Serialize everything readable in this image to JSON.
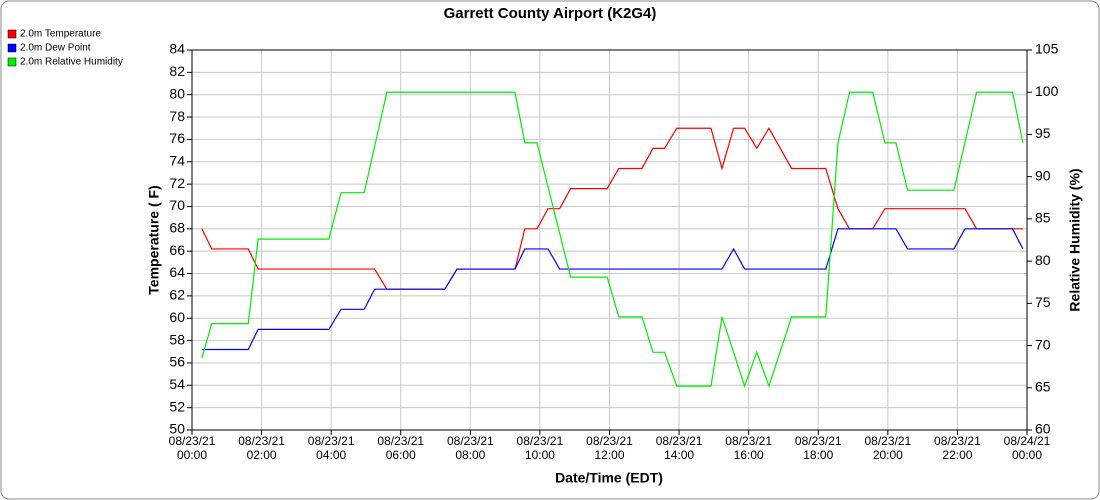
{
  "chart_data": {
    "type": "line",
    "title": "Garrett County Airport (K2G4)",
    "xlabel": "Date/Time (EDT)",
    "ylabel": "Temperature ( F)",
    "y2label": "Relative Humidity (%)",
    "xlim": [
      "08/23/21 00:00",
      "08/24/21 00:00"
    ],
    "xticks": [
      "08/23/21 00:00",
      "08/23/21 02:00",
      "08/23/21 04:00",
      "08/23/21 06:00",
      "08/23/21 08:00",
      "08/23/21 10:00",
      "08/23/21 12:00",
      "08/23/21 14:00",
      "08/23/21 16:00",
      "08/23/21 18:00",
      "08/23/21 20:00",
      "08/23/21 22:00",
      "08/24/21 00:00"
    ],
    "ylim": [
      50,
      84
    ],
    "yticks": [
      50,
      52,
      54,
      56,
      58,
      60,
      62,
      64,
      66,
      68,
      70,
      72,
      74,
      76,
      78,
      80,
      82,
      84
    ],
    "y2lim": [
      60,
      105
    ],
    "y2ticks": [
      60,
      65,
      70,
      75,
      80,
      85,
      90,
      95,
      100,
      105
    ],
    "grid": true,
    "legend": "top-left",
    "series": [
      {
        "name": "2.0m Temperature",
        "color": "#ff0000",
        "x": [
          "08/23/21 00:17",
          "08/23/21 00:34",
          "08/23/21 01:37",
          "08/23/21 01:54",
          "08/23/21 05:15",
          "08/23/21 05:36",
          "08/23/21 07:16",
          "08/23/21 07:37",
          "08/23/21 09:17",
          "08/23/21 09:34",
          "08/23/21 09:55",
          "08/23/21 10:14",
          "08/23/21 10:34",
          "08/23/21 10:53",
          "08/23/21 11:56",
          "08/23/21 12:16",
          "08/23/21 12:56",
          "08/23/21 13:15",
          "08/23/21 13:35",
          "08/23/21 13:56",
          "08/23/21 14:55",
          "08/23/21 15:14",
          "08/23/21 15:34",
          "08/23/21 15:53",
          "08/23/21 16:14",
          "08/23/21 16:35",
          "08/23/21 17:14",
          "08/23/21 18:13",
          "08/23/21 18:34",
          "08/23/21 18:54",
          "08/23/21 19:34",
          "08/23/21 19:55",
          "08/23/21 22:13",
          "08/23/21 22:33",
          "08/23/21 23:53"
        ],
        "values": [
          68.0,
          66.2,
          66.2,
          64.4,
          64.4,
          62.6,
          62.6,
          64.4,
          64.4,
          68.0,
          68.0,
          69.8,
          69.8,
          71.6,
          71.6,
          73.4,
          73.4,
          75.2,
          75.2,
          77.0,
          77.0,
          73.4,
          77.0,
          77.0,
          75.2,
          77.0,
          73.4,
          73.4,
          69.8,
          68.0,
          68.0,
          69.8,
          69.8,
          68.0,
          68.0
        ]
      },
      {
        "name": "2.0m Dew Point",
        "color": "#0000ff",
        "x": [
          "08/23/21 00:17",
          "08/23/21 01:37",
          "08/23/21 01:54",
          "08/23/21 03:56",
          "08/23/21 04:17",
          "08/23/21 04:57",
          "08/23/21 05:15",
          "08/23/21 07:16",
          "08/23/21 07:37",
          "08/23/21 09:17",
          "08/23/21 09:34",
          "08/23/21 10:14",
          "08/23/21 10:34",
          "08/23/21 15:14",
          "08/23/21 15:34",
          "08/23/21 15:53",
          "08/23/21 18:13",
          "08/23/21 18:34",
          "08/23/21 20:14",
          "08/23/21 20:34",
          "08/23/21 21:54",
          "08/23/21 22:13",
          "08/23/21 23:35",
          "08/23/21 23:53"
        ],
        "values": [
          57.2,
          57.2,
          59.0,
          59.0,
          60.8,
          60.8,
          62.6,
          62.6,
          64.4,
          64.4,
          66.2,
          66.2,
          64.4,
          64.4,
          66.2,
          64.4,
          64.4,
          68.0,
          68.0,
          66.2,
          66.2,
          68.0,
          68.0,
          66.2
        ]
      },
      {
        "name": "2.0m Relative Humidity",
        "color": "#00ee00",
        "axis": "y2",
        "x": [
          "08/23/21 00:17",
          "08/23/21 00:34",
          "08/23/21 01:37",
          "08/23/21 01:54",
          "08/23/21 03:56",
          "08/23/21 04:17",
          "08/23/21 04:57",
          "08/23/21 05:36",
          "08/23/21 09:17",
          "08/23/21 09:34",
          "08/23/21 09:55",
          "08/23/21 10:53",
          "08/23/21 11:56",
          "08/23/21 12:16",
          "08/23/21 12:56",
          "08/23/21 13:15",
          "08/23/21 13:35",
          "08/23/21 13:56",
          "08/23/21 14:55",
          "08/23/21 15:14",
          "08/23/21 15:53",
          "08/23/21 16:14",
          "08/23/21 16:35",
          "08/23/21 17:14",
          "08/23/21 18:13",
          "08/23/21 18:34",
          "08/23/21 18:54",
          "08/23/21 19:34",
          "08/23/21 19:55",
          "08/23/21 20:14",
          "08/23/21 20:34",
          "08/23/21 21:54",
          "08/23/21 22:33",
          "08/23/21 23:35",
          "08/23/21 23:53"
        ],
        "values": [
          68.5,
          72.6,
          72.6,
          82.6,
          82.6,
          88.1,
          88.1,
          100,
          100,
          94,
          94,
          78.1,
          78.1,
          73.4,
          73.4,
          69.2,
          69.2,
          65.2,
          65.2,
          73.4,
          65.2,
          69.2,
          65.2,
          73.4,
          73.4,
          94,
          100,
          100,
          94,
          94,
          88.4,
          88.4,
          100,
          100,
          94
        ]
      }
    ]
  }
}
